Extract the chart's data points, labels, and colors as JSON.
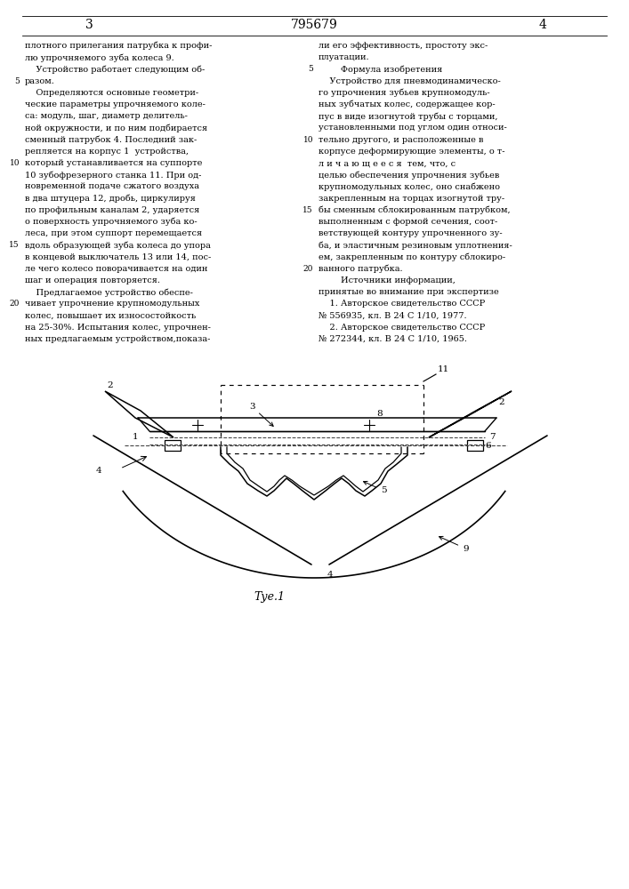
{
  "bg_color": "#ffffff",
  "title_num": "795679",
  "page_left": "3",
  "page_right": "4",
  "fig_label": "Τуе.1",
  "text_left_lines": [
    "плотного прилегания патрубка к профи-",
    "лю упрочняемого зуба колеса 9.",
    "    Устройство работает следующим об-",
    "разом.",
    "    Определяются основные геометри-",
    "ческие параметры упрочняемого коле-",
    "са: модуль, шаг, диаметр делитель-",
    "ной окружности, и по ним подбирается",
    "сменный патрубок 4. Последний зак-",
    "репляется на корпус 1  устройства,",
    "который устанавливается на суппорте",
    "10 зубофрезерного станка 11. При од-",
    "новременной подаче сжатого воздуха",
    "в два штуцера 12, дробь, циркулируя",
    "по профильным каналам 2, ударяется",
    "о поверхность упрочняемого зуба ко-",
    "леса, при этом суппорт перемещается",
    "вдоль образующей зуба колеса до упора",
    "в концевой выключатель 13 или 14, пос-",
    "ле чего колесо поворачивается на один",
    "шаг и операция повторяется.",
    "    Предлагаемое устройство обеспе-",
    "чивает упрочнение крупномодульных",
    "колес, повышает их износостойкость",
    "на 25-30%. Испытания колес, упрочнен-",
    "ных предлагаемым устройством,показа-"
  ],
  "text_right_lines": [
    "ли его эффективность, простоту экс-",
    "плуатации.",
    "        Формула изобретения",
    "    Устройство для пневмодинамическо-",
    "го упрочнения зубьев крупномодуль-",
    "ных зубчатых колес, содержащее кор-",
    "пус в виде изогнутой трубы с торцами,",
    "установленными под углом один относи-",
    "тельно другого, и расположенные в",
    "корпусе деформирующие элементы, о т-",
    "л и ч а ю щ е е с я  тем, что, с",
    "целью обеспечения упрочнения зубьев",
    "крупномодульных колес, оно снабжено",
    "закрепленным на торцах изогнутой тру-",
    "бы сменным сблокированным патрубком,",
    "выполненным с формой сечения, соот-",
    "ветствующей контуру упрочненного зу-",
    "ба, и эластичным резиновым уплотнения-",
    "ем, закрепленным по контуру сблокиро-",
    "ванного патрубка.",
    "        Источники информации,",
    "принятые во внимание при экспертизе",
    "    1. Авторское свидетельство СССР",
    "№ 556935, кл. В 24 С 1/10, 1977.",
    "    2. Авторское свидетельство СССР",
    "№ 272344, кл. В 24 С 1/10, 1965."
  ],
  "lnum_left": {
    "3": "5",
    "10": "10",
    "17": "15",
    "22": "20"
  },
  "lnum_right": {
    "2": "5",
    "8": "10",
    "14": "15",
    "19": "20"
  }
}
